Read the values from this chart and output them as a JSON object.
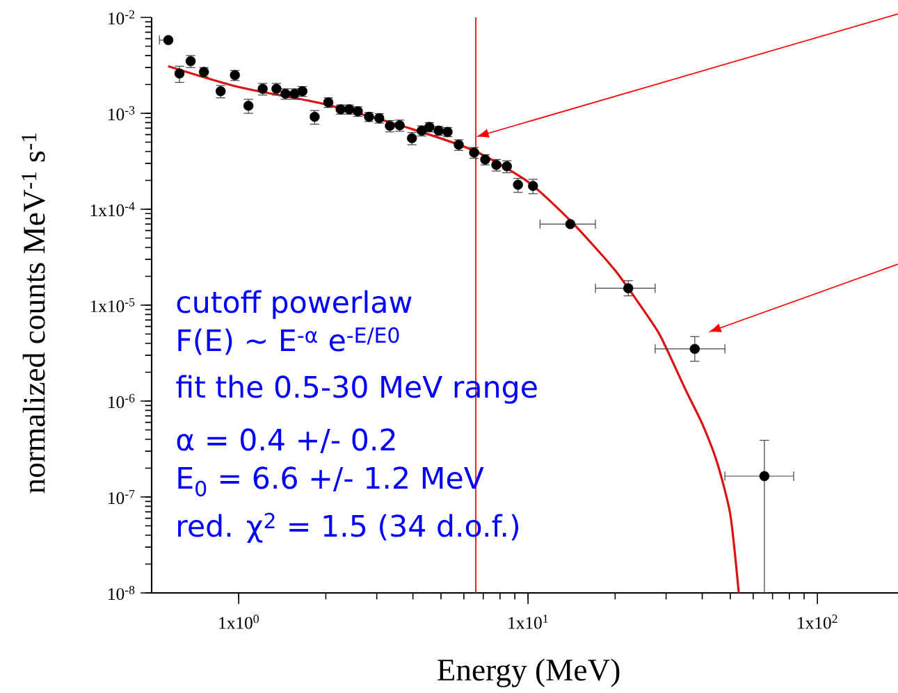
{
  "chart_data": {
    "type": "scatter",
    "xlabel": "Energy (MeV)",
    "ylabel": "normalized  counts  MeV$^{-1}$ s$^{-1}$",
    "log": "xy",
    "xlim": [
      0.5,
      190
    ],
    "ylim": [
      1e-08,
      0.01
    ],
    "xticks": [
      {
        "value": 1,
        "label": "1x10$^{0}$"
      },
      {
        "value": 10,
        "label": "1x10$^{1}$"
      },
      {
        "value": 100,
        "label": "1x10$^{2}$"
      }
    ],
    "yticks": [
      {
        "value": 1e-08,
        "label": "10$^{-8}$"
      },
      {
        "value": 1e-07,
        "label": "10$^{-7}$"
      },
      {
        "value": 1e-06,
        "label": "10$^{-6}$"
      },
      {
        "value": 1e-05,
        "label": "1x10$^{-5}$"
      },
      {
        "value": 0.0001,
        "label": "1x10$^{-4}$"
      },
      {
        "value": 0.001,
        "label": "10$^{-3}$"
      },
      {
        "value": 0.01,
        "label": "10$^{-2}$"
      }
    ],
    "series": [
      {
        "color": "#000000",
        "marker": "circle",
        "x": [
          0.571,
          0.624,
          0.682,
          0.758,
          0.866,
          0.97,
          1.08,
          1.21,
          1.35,
          1.45,
          1.56,
          1.66,
          1.83,
          2.04,
          2.25,
          2.41,
          2.58,
          2.82,
          3.06,
          3.33,
          3.6,
          3.97,
          4.29,
          4.56,
          4.91,
          5.27,
          5.76,
          6.51,
          7.11,
          7.77,
          8.45,
          9.23,
          10.4,
          14.0,
          22.2,
          37.7,
          65.6
        ],
        "values": [
          0.0058,
          0.0026,
          0.0035,
          0.0027,
          0.0017,
          0.0025,
          0.0012,
          0.0018,
          0.0018,
          0.0016,
          0.0016,
          0.0017,
          0.00092,
          0.0013,
          0.0011,
          0.0011,
          0.00105,
          0.00092,
          0.00089,
          0.00074,
          0.00075,
          0.00055,
          0.00066,
          0.00072,
          0.00066,
          0.00064,
          0.00047,
          0.00039,
          0.00033,
          0.00029,
          0.00028,
          0.00018,
          0.000175,
          7e-05,
          1.5e-05,
          3.5e-06,
          1.65e-07
        ],
        "errors": [
          null,
          0.0005,
          0.0005,
          0.0003,
          0.00025,
          0.0003,
          0.0002,
          0.00025,
          0.00025,
          0.0002,
          0.0002,
          0.0002,
          0.00015,
          0.00015,
          0.00012,
          0.00012,
          0.00012,
          0.0001,
          0.0001,
          0.0001,
          0.0001,
          8e-05,
          8e-05,
          8e-05,
          7e-05,
          7e-05,
          6e-05,
          5e-05,
          4e-05,
          4e-05,
          4e-05,
          3e-05,
          3e-05,
          null,
          [
            1.25e-05,
            1.8e-05
          ],
          [
            2.6e-06,
            4.7e-06
          ],
          [
            1e-08,
            3.9e-07
          ]
        ],
        "xerrors": [
          [
            0.532,
            0.571
          ],
          null,
          null,
          null,
          null,
          null,
          null,
          null,
          null,
          null,
          null,
          null,
          null,
          null,
          null,
          null,
          null,
          null,
          null,
          null,
          null,
          null,
          null,
          null,
          null,
          null,
          null,
          null,
          null,
          null,
          null,
          null,
          null,
          [
            11.0,
            17.1
          ],
          [
            17.1,
            27.5
          ],
          [
            27.5,
            47.9
          ],
          [
            47.9,
            82.8
          ]
        ]
      },
      {
        "type": "line",
        "color": "#dd1111",
        "marker": "none",
        "x": [
          0.57,
          1,
          2,
          4,
          6.6,
          10,
          14,
          20,
          27.5,
          30,
          35,
          40,
          45,
          50,
          53.5
        ],
        "values": [
          0.0031,
          0.00188,
          0.00124,
          0.00068,
          0.0004,
          0.000193,
          7.6e-05,
          2.3e-05,
          5.9e-06,
          3.6e-06,
          1.32e-06,
          5.8e-07,
          2.3e-07,
          6.6e-08,
          1e-08
        ]
      }
    ],
    "ref_lines": [
      {
        "axis": "x",
        "value": 6.6,
        "color": "#ff0000"
      }
    ],
    "annotations": [
      "cutoff powerlaw",
      "F(E) ~ E$^{-α}$ e$^{-E/E0}$",
      "fit the 0.5-30 MeV range",
      "α = 0.4 +/- 0.2",
      "E$_{0}$ = 6.6 +/- 1.2 MeV",
      "red. χ$^{2}$ = 1.5 (34 d.o.f.)"
    ]
  }
}
